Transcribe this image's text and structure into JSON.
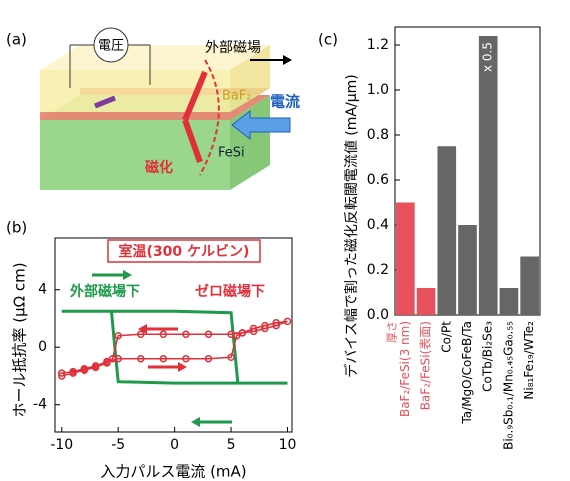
{
  "diagram": {
    "panel_label": "(a)",
    "voltage": "電圧",
    "field": "外部磁場",
    "top_layer": "BaF₂",
    "current": "電流",
    "bottom_layer": "FeSi",
    "magnetization": "磁化"
  },
  "chart_data": [
    {
      "type": "line",
      "panel_label": "(b)",
      "annotation": "室温(300 ケルビン)",
      "x_label": "入力パルス電流 (mA)",
      "y_label": "ホール抵抗率 (μΩ cm)",
      "xlim": [
        -10.6,
        10.4
      ],
      "ylim": [
        -5.9,
        7.6
      ],
      "xticks": [
        -10,
        -5,
        0,
        5,
        10
      ],
      "yticks": [
        -4,
        0,
        4
      ],
      "series": [
        {
          "name": "外部磁場下",
          "color": "#1e9a4a",
          "x": [
            -10,
            -5,
            0,
            5,
            5.3,
            5.6,
            10,
            5,
            0,
            -5,
            -5.3,
            -5.6,
            -10
          ],
          "values": [
            2.5,
            2.5,
            2.5,
            2.4,
            0,
            -2.5,
            -2.5,
            -2.5,
            -2.5,
            -2.4,
            0,
            2.5,
            2.5
          ]
        },
        {
          "name": "ゼロ磁場下",
          "color": "#e0303a",
          "markers": true,
          "x": [
            -10,
            -9,
            -8,
            -7,
            -6,
            -5,
            -3,
            -1,
            1,
            3,
            5,
            5.5,
            6,
            7,
            8,
            9,
            10,
            9,
            8,
            7,
            6,
            5,
            3,
            1,
            -1,
            -3,
            -5,
            -5.5,
            -6,
            -7,
            -8,
            -9,
            -10
          ],
          "values": [
            -1.8,
            -1.7,
            -1.5,
            -1.3,
            -1.0,
            -0.8,
            -0.8,
            -0.8,
            -0.8,
            -0.8,
            -0.7,
            0.8,
            1.0,
            1.3,
            1.5,
            1.7,
            1.8,
            1.5,
            1.3,
            1.1,
            1.0,
            0.9,
            0.9,
            0.9,
            0.9,
            0.9,
            0.8,
            -0.8,
            -1.1,
            -1.4,
            -1.6,
            -1.8,
            -2.0
          ]
        }
      ]
    },
    {
      "type": "bar",
      "panel_label": "(c)",
      "y_label": "デバイス幅で割った磁化反転閾電流値 (mA/μm)",
      "categories": [
        "BaF₂/FeSi(3 nm)",
        "BaF₂/FeSi(表面)",
        "Co/Pt",
        "Ta/MgO/CoFeB/Ta",
        "CoTb/Bi₂Se₃",
        "Bi₀.₉Sb₀.₁/Mn₀.₄₅Ga₀.₅₅",
        "Ni₈₁Fe₁₉/WTe₂"
      ],
      "label_note": "厚さ",
      "values": [
        0.5,
        0.12,
        0.75,
        0.4,
        1.24,
        0.12,
        0.26
      ],
      "colors": [
        "#e8505b",
        "#e8505b",
        "#666666",
        "#666666",
        "#666666",
        "#666666",
        "#666666"
      ],
      "annotation": {
        "text": "x 0.5",
        "category": "CoTb/Bi₂Se₃"
      },
      "ylim": [
        0,
        1.28
      ],
      "yticks": [
        {
          "value": 0,
          "label": "0.0"
        },
        0.2,
        0.4,
        0.6,
        0.8,
        {
          "value": 1,
          "label": "1.0"
        },
        1.2
      ]
    }
  ]
}
